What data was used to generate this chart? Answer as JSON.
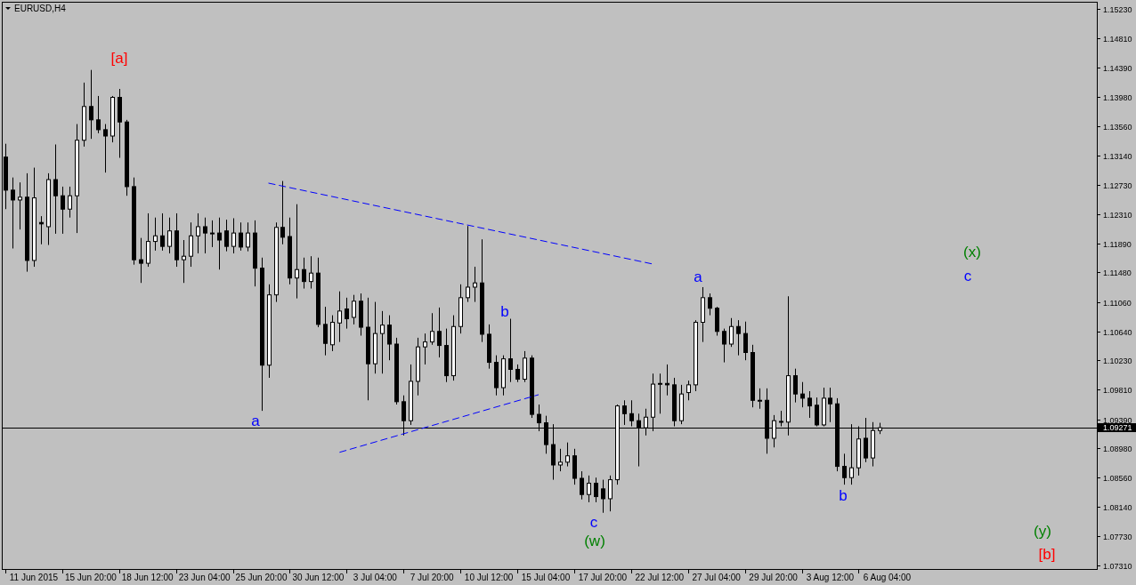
{
  "chart_data": {
    "type": "candlestick",
    "title": "EURUSD,H4",
    "categories": [
      null,
      null,
      null,
      null,
      "11 Jun 2015",
      null,
      null,
      null,
      null,
      null,
      null,
      null,
      "15 Jun 20:00",
      null,
      null,
      null,
      null,
      null,
      null,
      null,
      "18 Jun 12:00",
      null,
      null,
      null,
      null,
      null,
      null,
      null,
      "23 Jun 04:00",
      null,
      null,
      null,
      null,
      null,
      null,
      null,
      "25 Jun 20:00",
      null,
      null,
      null,
      null,
      null,
      null,
      null,
      "30 Jun 12:00",
      null,
      null,
      null,
      null,
      null,
      null,
      null,
      "3 Jul 04:00",
      null,
      null,
      null,
      null,
      null,
      null,
      null,
      "7 Jul 20:00",
      null,
      null,
      null,
      null,
      null,
      null,
      null,
      "10 Jul 12:00",
      null,
      null,
      null,
      null,
      null,
      null,
      null,
      "15 Jul 04:00",
      null,
      null,
      null,
      null,
      null,
      null,
      null,
      "17 Jul 20:00",
      null,
      null,
      null,
      null,
      null,
      null,
      null,
      "22 Jul 12:00",
      null,
      null,
      null,
      null,
      null,
      null,
      null,
      "27 Jul 04:00",
      null,
      null,
      null,
      null,
      null,
      null,
      null,
      "29 Jul 20:00",
      null,
      null,
      null,
      null,
      null,
      null,
      null,
      "3 Aug 12:00",
      null,
      null,
      null,
      null,
      null,
      null,
      null,
      "6 Aug 04:00",
      null,
      null,
      null,
      null,
      null,
      null,
      null,
      null,
      null,
      null,
      null,
      null,
      null,
      null,
      null,
      null,
      null,
      null,
      null,
      null,
      null,
      null,
      null,
      null,
      null,
      null,
      null,
      null,
      null
    ],
    "ohlc": [
      [
        1.1312,
        1.1331,
        1.1238,
        1.1265
      ],
      [
        1.1265,
        1.1283,
        1.1182,
        1.1251
      ],
      [
        1.1251,
        1.1276,
        1.1209,
        1.1255
      ],
      [
        1.1255,
        1.1289,
        1.1149,
        1.1165
      ],
      [
        1.1165,
        1.1297,
        1.1156,
        1.1254
      ],
      [
        1.1219,
        1.1228,
        1.1188,
        1.1217
      ],
      [
        1.1213,
        1.1289,
        1.1187,
        1.128
      ],
      [
        1.128,
        1.133,
        1.1203,
        1.1257
      ],
      [
        1.1257,
        1.127,
        1.1203,
        1.1238
      ],
      [
        1.1238,
        1.127,
        1.1226,
        1.1257
      ],
      [
        1.1257,
        1.1359,
        1.1204,
        1.1336
      ],
      [
        1.1336,
        1.1418,
        1.1327,
        1.1384
      ],
      [
        1.1384,
        1.1436,
        1.1338,
        1.1365
      ],
      [
        1.1365,
        1.1399,
        1.1346,
        1.1351
      ],
      [
        1.1351,
        1.1359,
        1.129,
        1.1342
      ],
      [
        1.1342,
        1.1399,
        1.1333,
        1.1397
      ],
      [
        1.1397,
        1.1409,
        1.1311,
        1.1362
      ],
      [
        1.1362,
        1.1365,
        1.1257,
        1.127
      ],
      [
        1.127,
        1.1283,
        1.1159,
        1.1166
      ],
      [
        1.1166,
        1.1197,
        1.1133,
        1.1161
      ],
      [
        1.1161,
        1.1232,
        1.1156,
        1.1192
      ],
      [
        1.1192,
        1.1226,
        1.1179,
        1.12
      ],
      [
        1.12,
        1.1232,
        1.1179,
        1.1185
      ],
      [
        1.1185,
        1.1226,
        1.1175,
        1.1207
      ],
      [
        1.1207,
        1.1232,
        1.1156,
        1.1166
      ],
      [
        1.1166,
        1.1194,
        1.1133,
        1.1171
      ],
      [
        1.1171,
        1.1219,
        1.1156,
        1.12
      ],
      [
        1.12,
        1.1232,
        1.1175,
        1.1213
      ],
      [
        1.1213,
        1.1226,
        1.1175,
        1.1204
      ],
      [
        1.1204,
        1.1222,
        1.1184,
        1.1204
      ],
      [
        1.1204,
        1.1226,
        1.1152,
        1.1194
      ],
      [
        1.1207,
        1.1223,
        1.1178,
        1.1185
      ],
      [
        1.1185,
        1.1225,
        1.1175,
        1.1204
      ],
      [
        1.1204,
        1.1219,
        1.1179,
        1.1184
      ],
      [
        1.1184,
        1.1219,
        1.1178,
        1.1204
      ],
      [
        1.1204,
        1.1222,
        1.1128,
        1.1154
      ],
      [
        1.1154,
        1.1169,
        1.0951,
        1.1016
      ],
      [
        1.1016,
        1.1131,
        1.0998,
        1.1116
      ],
      [
        1.1116,
        1.1219,
        1.1106,
        1.1212
      ],
      [
        1.1212,
        1.1278,
        1.1188,
        1.1198
      ],
      [
        1.1199,
        1.1226,
        1.1131,
        1.114
      ],
      [
        1.114,
        1.1245,
        1.1111,
        1.1152
      ],
      [
        1.1152,
        1.1169,
        1.1125,
        1.1135
      ],
      [
        1.1135,
        1.1171,
        1.1125,
        1.1147
      ],
      [
        1.1147,
        1.1169,
        1.107,
        1.1074
      ],
      [
        1.1074,
        1.1099,
        1.103,
        1.1047
      ],
      [
        1.1045,
        1.1087,
        1.1036,
        1.1077
      ],
      [
        1.1076,
        1.1121,
        1.1049,
        1.1093
      ],
      [
        1.1096,
        1.1112,
        1.1068,
        1.1082
      ],
      [
        1.1084,
        1.1116,
        1.1074,
        1.1107
      ],
      [
        1.1107,
        1.1118,
        1.1058,
        1.107
      ],
      [
        1.107,
        1.1112,
        1.0966,
        1.1018
      ],
      [
        1.1018,
        1.1106,
        1.1004,
        1.1061
      ],
      [
        1.1061,
        1.1093,
        1.1004,
        1.1073
      ],
      [
        1.1073,
        1.1087,
        1.1023,
        1.1046
      ],
      [
        1.1046,
        1.1055,
        1.096,
        1.0964
      ],
      [
        1.0964,
        1.0973,
        1.0916,
        1.0937
      ],
      [
        1.0937,
        1.1017,
        1.0931,
        1.0993
      ],
      [
        1.0993,
        1.1055,
        1.0973,
        1.1042
      ],
      [
        1.1042,
        1.1061,
        1.1017,
        1.1049
      ],
      [
        1.1049,
        1.109,
        1.1045,
        1.1064
      ],
      [
        1.1064,
        1.1098,
        1.1027,
        1.1044
      ],
      [
        1.1044,
        1.1068,
        1.0992,
        1.1001
      ],
      [
        1.1001,
        1.1087,
        1.0994,
        1.1071
      ],
      [
        1.1071,
        1.1131,
        1.1061,
        1.1112
      ],
      [
        1.1112,
        1.1214,
        1.1106,
        1.1127
      ],
      [
        1.1127,
        1.1156,
        1.1106,
        1.1133
      ],
      [
        1.1133,
        1.1195,
        1.1049,
        1.106
      ],
      [
        1.106,
        1.1074,
        1.1011,
        1.102
      ],
      [
        1.102,
        1.103,
        1.0973,
        1.0984
      ],
      [
        1.0984,
        1.103,
        1.0973,
        1.1025
      ],
      [
        1.1025,
        1.1082,
        1.0992,
        1.101
      ],
      [
        1.101,
        1.1017,
        1.0992,
        1.0996
      ],
      [
        1.0996,
        1.1036,
        1.0992,
        1.1026
      ],
      [
        1.1026,
        1.103,
        1.0941,
        1.0946
      ],
      [
        1.0946,
        1.096,
        1.0922,
        1.0934
      ],
      [
        1.0934,
        1.0944,
        1.089,
        1.0903
      ],
      [
        1.0903,
        1.0932,
        1.0853,
        1.0874
      ],
      [
        1.0874,
        1.0897,
        1.0865,
        1.0878
      ],
      [
        1.0878,
        1.0906,
        1.0872,
        1.0887
      ],
      [
        1.0887,
        1.0897,
        1.0846,
        1.0855
      ],
      [
        1.0855,
        1.0865,
        1.0825,
        1.0832
      ],
      [
        1.0832,
        1.0859,
        1.0821,
        1.0848
      ],
      [
        1.0848,
        1.0856,
        1.0821,
        1.0829
      ],
      [
        1.084,
        1.0853,
        1.0806,
        1.0826
      ],
      [
        1.0826,
        1.0859,
        1.0808,
        1.0853
      ],
      [
        1.0853,
        1.096,
        1.0846,
        1.0958
      ],
      [
        1.0958,
        1.0966,
        1.0931,
        1.0947
      ],
      [
        1.0947,
        1.0966,
        1.0929,
        1.0937
      ],
      [
        1.0937,
        1.0947,
        1.0872,
        1.0927
      ],
      [
        1.0927,
        1.0954,
        1.0916,
        1.0942
      ],
      [
        1.0942,
        1.1004,
        1.0922,
        1.0989
      ],
      [
        1.0989,
        1.1004,
        1.0947,
        1.099
      ],
      [
        1.099,
        1.1017,
        1.0973,
        1.0988
      ],
      [
        1.0988,
        1.0998,
        1.0929,
        1.0937
      ],
      [
        1.0937,
        1.0988,
        1.0932,
        1.0975
      ],
      [
        1.0977,
        1.0994,
        1.0966,
        1.0988
      ],
      [
        1.0988,
        1.108,
        1.0979,
        1.1077
      ],
      [
        1.1077,
        1.1127,
        1.1049,
        1.1112
      ],
      [
        1.1112,
        1.1118,
        1.1087,
        1.1097
      ],
      [
        1.1097,
        1.1099,
        1.1058,
        1.1064
      ],
      [
        1.1064,
        1.1068,
        1.102,
        1.1046
      ],
      [
        1.1046,
        1.1083,
        1.1042,
        1.1071
      ],
      [
        1.1071,
        1.108,
        1.103,
        1.1061
      ],
      [
        1.1061,
        1.1078,
        1.1023,
        1.1034
      ],
      [
        1.1034,
        1.1045,
        1.0956,
        1.0966
      ],
      [
        1.0966,
        1.0983,
        1.0954,
        1.0966
      ],
      [
        1.0966,
        1.0983,
        1.089,
        1.0912
      ],
      [
        1.0912,
        1.0945,
        1.0899,
        1.0937
      ],
      [
        1.0936,
        1.0951,
        1.0929,
        1.0935
      ],
      [
        1.0935,
        1.1114,
        1.0916,
        1.1001
      ],
      [
        1.1001,
        1.1011,
        1.0963,
        1.0975
      ],
      [
        1.0975,
        1.0992,
        1.0956,
        1.0969
      ],
      [
        1.0969,
        1.0979,
        1.0941,
        1.0958
      ],
      [
        1.0959,
        1.097,
        1.0929,
        1.0931
      ],
      [
        1.0931,
        1.0984,
        1.0929,
        1.0969
      ],
      [
        1.0969,
        1.0984,
        1.0935,
        1.0961
      ],
      [
        1.0961,
        1.0969,
        1.0865,
        1.0872
      ],
      [
        1.0872,
        1.089,
        1.0846,
        1.0856
      ],
      [
        1.0856,
        1.0932,
        1.0846,
        1.087
      ],
      [
        1.087,
        1.0929,
        1.0859,
        1.0911
      ],
      [
        1.0912,
        1.0941,
        1.0878,
        1.0884
      ],
      [
        1.0884,
        1.0935,
        1.0872,
        1.0923
      ],
      [
        1.0923,
        1.0934,
        1.0918,
        1.0927
      ],
      null,
      null,
      null,
      null,
      null,
      null,
      null,
      null,
      null,
      null,
      null,
      null,
      null,
      null,
      null,
      null,
      null,
      null,
      null,
      null,
      null,
      null,
      null,
      null,
      null,
      null,
      null,
      null,
      null,
      null
    ],
    "series": [
      {
        "type": "line",
        "color": "#0000ff",
        "line_style": "dashed",
        "values": [
          null,
          null,
          null,
          null,
          null,
          null,
          null,
          null,
          null,
          null,
          null,
          null,
          null,
          null,
          null,
          null,
          null,
          null,
          null,
          null,
          null,
          null,
          null,
          null,
          null,
          null,
          null,
          null,
          null,
          null,
          null,
          null,
          null,
          null,
          null,
          null,
          null,
          1.1275,
          null,
          null,
          null,
          null,
          null,
          null,
          null,
          null,
          null,
          null,
          null,
          null,
          null,
          null,
          null,
          null,
          null,
          null,
          null,
          null,
          null,
          null,
          null,
          null,
          null,
          null,
          null,
          null,
          null,
          null,
          null,
          null,
          null,
          null,
          null,
          null,
          null,
          null,
          null,
          null,
          null,
          null,
          null,
          null,
          null,
          null,
          null,
          null,
          null,
          null,
          null,
          null,
          null,
          1.116,
          null,
          null,
          null,
          null,
          null,
          null,
          null,
          null,
          null,
          null,
          null,
          null,
          null,
          null,
          null,
          null,
          null,
          null,
          null,
          null,
          null,
          null,
          null,
          null,
          null,
          null,
          null,
          null,
          null,
          null,
          null,
          null,
          null,
          null,
          null,
          null,
          null,
          null,
          null,
          null,
          null,
          null,
          null,
          null,
          null,
          null,
          null,
          null,
          null,
          null,
          null,
          null,
          null,
          null,
          null,
          null,
          null,
          null,
          null,
          null,
          null,
          null
        ]
      },
      {
        "type": "line",
        "color": "#0000ff",
        "line_style": "dashed",
        "values": [
          null,
          null,
          null,
          null,
          null,
          null,
          null,
          null,
          null,
          null,
          null,
          null,
          null,
          null,
          null,
          null,
          null,
          null,
          null,
          null,
          null,
          null,
          null,
          null,
          null,
          null,
          null,
          null,
          null,
          null,
          null,
          null,
          null,
          null,
          null,
          null,
          null,
          null,
          null,
          null,
          null,
          null,
          null,
          null,
          null,
          null,
          null,
          1.0892,
          null,
          null,
          null,
          null,
          null,
          null,
          null,
          null,
          null,
          null,
          null,
          null,
          null,
          null,
          null,
          null,
          null,
          null,
          null,
          null,
          null,
          null,
          null,
          null,
          null,
          null,
          null,
          1.0974,
          null,
          null,
          null,
          null,
          null,
          null,
          null,
          null,
          null,
          null,
          null,
          null,
          null,
          null,
          null,
          null,
          null,
          null,
          null,
          null,
          null,
          null,
          null,
          null,
          null,
          null,
          null,
          null,
          null,
          null,
          null,
          null,
          null,
          null,
          null,
          null,
          null,
          null,
          null,
          null,
          null,
          null,
          null,
          null,
          null,
          null,
          null,
          null,
          null,
          null,
          null,
          null,
          null,
          null,
          null,
          null,
          null,
          null,
          null,
          null,
          null,
          null,
          null,
          null,
          null,
          null,
          null,
          null,
          null,
          null,
          null,
          null,
          null,
          null,
          null,
          null,
          null,
          null
        ]
      }
    ],
    "ylim": [
      1.0726,
      1.1533
    ],
    "yticks": [
      {
        "value": 1.1523,
        "label": "1.15230"
      },
      {
        "value": 1.1481,
        "label": "1.14810"
      },
      {
        "value": 1.1439,
        "label": "1.14390"
      },
      {
        "value": 1.1398,
        "label": "1.13980"
      },
      {
        "value": 1.1356,
        "label": "1.13560"
      },
      {
        "value": 1.1314,
        "label": "1.13140"
      },
      {
        "value": 1.1273,
        "label": "1.12730"
      },
      {
        "value": 1.1231,
        "label": "1.12310"
      },
      {
        "value": 1.1189,
        "label": "1.11890"
      },
      {
        "value": 1.1148,
        "label": "1.11480"
      },
      {
        "value": 1.1106,
        "label": "1.11060"
      },
      {
        "value": 1.1064,
        "label": "1.10640"
      },
      {
        "value": 1.1023,
        "label": "1.10230"
      },
      {
        "value": 1.0981,
        "label": "1.09810"
      },
      {
        "value": 1.0939,
        "label": "1.09390"
      },
      {
        "value": 1.0898,
        "label": "1.08980"
      },
      {
        "value": 1.0856,
        "label": "1.08560"
      },
      {
        "value": 1.0814,
        "label": "1.08140"
      },
      {
        "value": 1.0773,
        "label": "1.07730"
      },
      {
        "value": 1.0731,
        "label": "1.07310"
      }
    ],
    "ref_lines": [
      {
        "axis": "y",
        "value": 1.09271,
        "label": "1.09271",
        "color": "#000000"
      }
    ],
    "annotations": [
      "[a]",
      "a",
      "b",
      "c",
      "(w)",
      "a",
      "b",
      "(x)",
      "c",
      "(y)",
      "[b]"
    ]
  }
}
